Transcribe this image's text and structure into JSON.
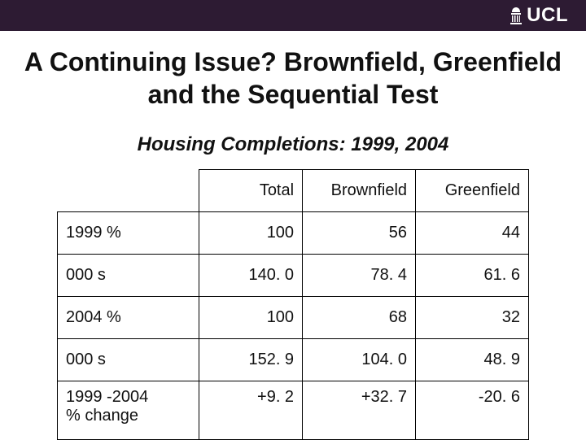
{
  "topbar": {
    "background_color": "#2d1b33",
    "logo_text": "UCL",
    "logo_text_color": "#ffffff"
  },
  "title": "A Continuing Issue? Brownfield, Greenfield and the Sequential Test",
  "subtitle": "Housing Completions: 1999, 2004",
  "table": {
    "type": "table",
    "columns": [
      "",
      "Total",
      "Brownfield",
      "Greenfield"
    ],
    "rows": [
      {
        "label": "1999 %",
        "values": [
          "100",
          "56",
          "44"
        ]
      },
      {
        "label": "000 s",
        "values": [
          "140. 0",
          "78. 4",
          "61. 6"
        ]
      },
      {
        "label": "2004 %",
        "values": [
          "100",
          "68",
          "32"
        ]
      },
      {
        "label": "000 s",
        "values": [
          "152. 9",
          "104. 0",
          "48. 9"
        ]
      },
      {
        "label": "1999 -2004 % change",
        "values": [
          "+9. 2",
          "+32. 7",
          "-20. 6"
        ],
        "multiline": true
      }
    ],
    "border_color": "#000000",
    "text_color": "#111111",
    "header_fontsize": 20,
    "cell_fontsize": 20,
    "col_widths_pct": [
      30,
      22,
      24,
      24
    ]
  },
  "title_fontsize": 32,
  "subtitle_fontsize": 24
}
